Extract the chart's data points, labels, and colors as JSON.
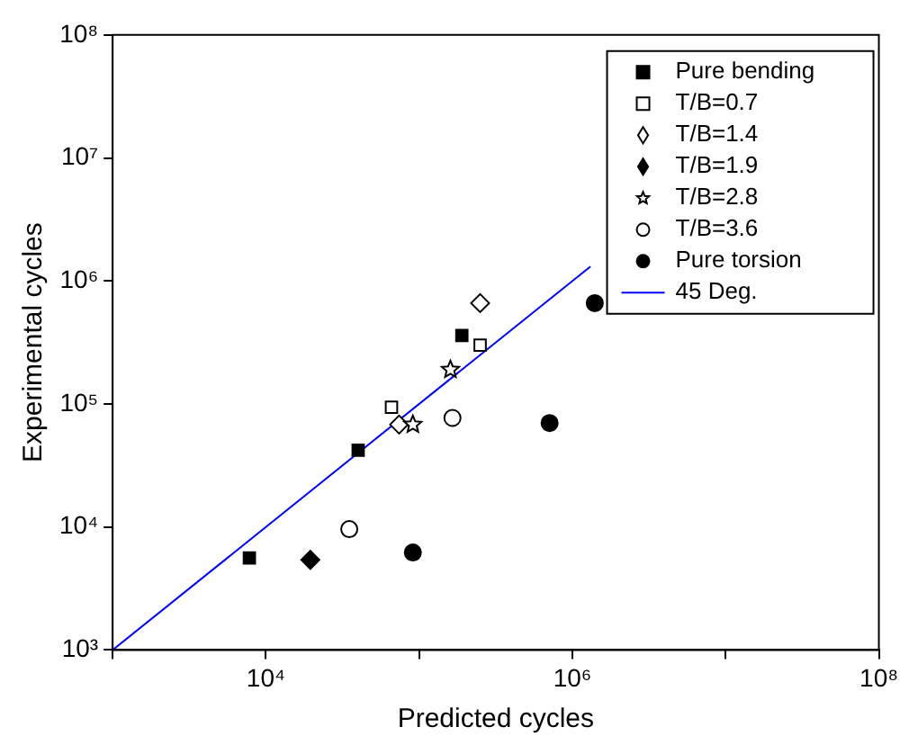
{
  "chart_data": {
    "type": "scatter",
    "xlabel": "Predicted cycles",
    "ylabel": "Experimental cycles",
    "log": "xy",
    "grid": false,
    "legend": "top right",
    "xlim": [
      1000,
      100000000
    ],
    "ylim": [
      1000,
      100000000
    ],
    "xticks": [
      {
        "value": 1000,
        "label": null
      },
      {
        "value": 10000,
        "label": "10⁴"
      },
      {
        "value": 100000,
        "label": null
      },
      {
        "value": 1000000,
        "label": "10⁶"
      },
      {
        "value": 10000000,
        "label": null
      },
      {
        "value": 100000000,
        "label": "10⁸"
      }
    ],
    "yticks": [
      {
        "value": 1000,
        "label": "10³"
      },
      {
        "value": 10000,
        "label": "10⁴"
      },
      {
        "value": 100000,
        "label": "10⁵"
      },
      {
        "value": 1000000,
        "label": "10⁶"
      },
      {
        "value": 10000000,
        "label": "10⁷"
      },
      {
        "value": 100000000,
        "label": "10⁸"
      }
    ],
    "series": [
      {
        "name": "Pure bending",
        "color": "#000000",
        "marker": "square",
        "x": [
          7800,
          40000,
          190000
        ],
        "values": [
          5600,
          42000,
          360000
        ]
      },
      {
        "name": "T/B=0.7",
        "color": "#ffffff",
        "marker": "square",
        "x": [
          66000,
          250000
        ],
        "values": [
          94000,
          300000
        ]
      },
      {
        "name": "T/B=1.4",
        "color": "#ffffff",
        "marker": "diamond",
        "x": [
          74000,
          250000
        ],
        "values": [
          68000,
          660000
        ]
      },
      {
        "name": "T/B=1.9",
        "color": "#000000",
        "marker": "diamond",
        "x": [
          19500
        ],
        "values": [
          5400
        ]
      },
      {
        "name": "T/B=2.8",
        "color": "#ffffff",
        "marker": "star",
        "x": [
          91000,
          160000
        ],
        "values": [
          68000,
          190000
        ]
      },
      {
        "name": "T/B=3.6",
        "color": "#ffffff",
        "marker": "circle",
        "x": [
          35000,
          165000
        ],
        "values": [
          9600,
          77000
        ]
      },
      {
        "name": "Pure torsion",
        "color": "#000000",
        "marker": "circle",
        "x": [
          91000,
          710000,
          1400000
        ],
        "values": [
          6200,
          70000,
          660000
        ]
      },
      {
        "name": "45 Deg.",
        "type": "line",
        "color": "#0000ff",
        "marker": "none",
        "line_style": "solid",
        "x": [
          1000,
          1300000
        ],
        "values": [
          1000,
          1300000
        ]
      }
    ]
  }
}
